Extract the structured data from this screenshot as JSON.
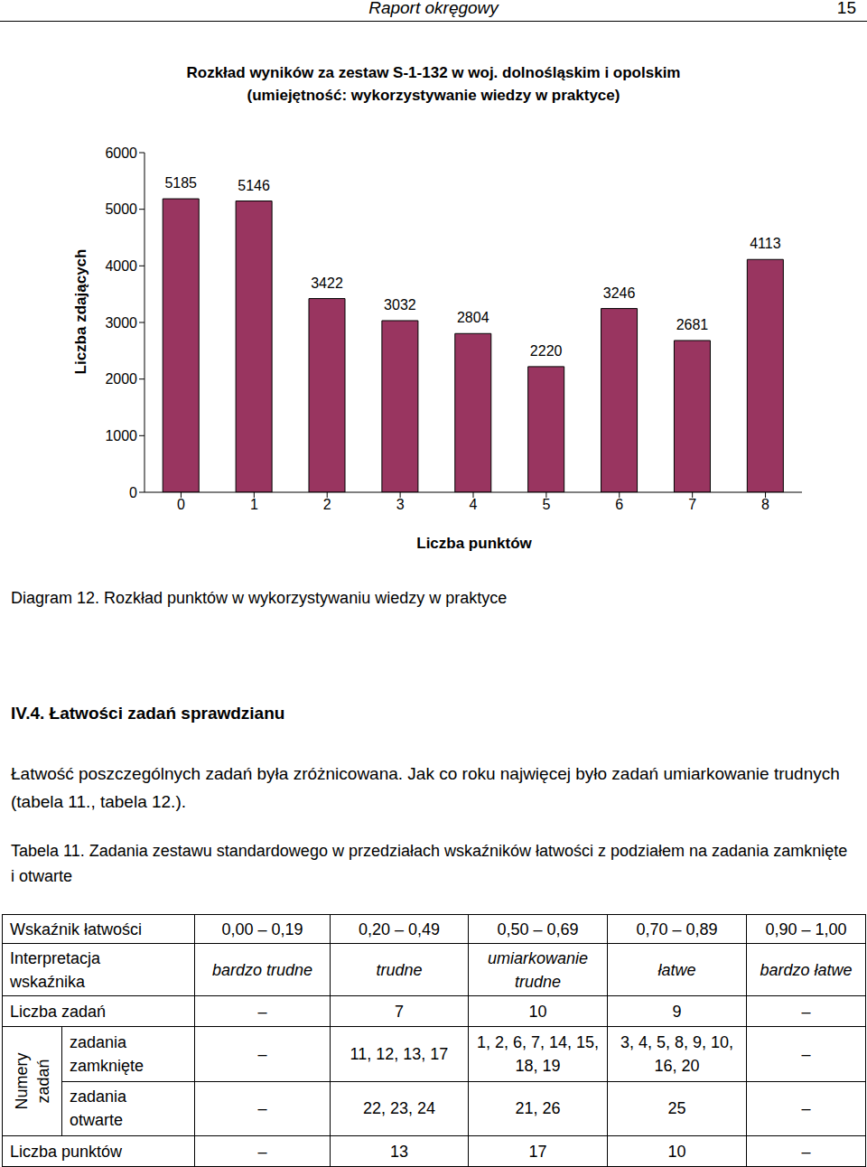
{
  "header": {
    "title": "Raport okręgowy",
    "page": "15"
  },
  "chart_data": {
    "type": "bar",
    "title": "Rozkład wyników za zestaw S-1-132 w woj. dolnośląskim i opolskim",
    "subtitle": "(umiejętność: wykorzystywanie wiedzy w praktyce)",
    "x_label": "Liczba punktów",
    "y_label": "Liczba zdających",
    "categories": [
      "0",
      "1",
      "2",
      "3",
      "4",
      "5",
      "6",
      "7",
      "8"
    ],
    "values": [
      5185,
      5146,
      3422,
      3032,
      2804,
      2220,
      3246,
      2681,
      4113
    ],
    "color": "#993560",
    "ylim": [
      0,
      6000
    ],
    "yticks": [
      0,
      1000,
      2000,
      3000,
      4000,
      5000,
      6000
    ],
    "grid": false,
    "data_labels": true
  },
  "caption": "Diagram 12. Rozkład punktów w wykorzystywaniu wiedzy w praktyce",
  "section_title": "IV.4. Łatwości zadań sprawdzianu",
  "paragraph": "Łatwość poszczególnych zadań była zróżnicowana. Jak co roku najwięcej było zadań umiarkowanie trudnych (tabela 11., tabela 12.).",
  "table_caption": "Tabela 11. Zadania zestawu standardowego w przedziałach wskaźników łatwości z podziałem na zadania zamknięte i otwarte",
  "table": {
    "head": {
      "label": "Wskaźnik łatwości",
      "cells": [
        "0,00 – 0,19",
        "0,20 – 0,49",
        "0,50 – 0,69",
        "0,70 – 0,89",
        "0,90 – 1,00"
      ]
    },
    "interpretation": {
      "label": "Interpretacja wskaźnika",
      "cells": [
        "bardzo trudne",
        "trudne",
        "umiarkowanie trudne",
        "łatwe",
        "bardzo łatwe"
      ]
    },
    "task_count": {
      "label": "Liczba zadań",
      "cells": [
        "–",
        "7",
        "10",
        "9",
        "–"
      ]
    },
    "task_numbers": {
      "label": "Numery zadań",
      "rows": [
        {
          "label": "zadania zamknięte",
          "cells": [
            "–",
            "11, 12, 13, 17",
            "1, 2, 6, 7, 14, 15, 18, 19",
            "3, 4, 5, 8, 9, 10, 16, 20",
            "–"
          ]
        },
        {
          "label": "zadania otwarte",
          "cells": [
            "–",
            "22, 23, 24",
            "21, 26",
            "25",
            "–"
          ]
        }
      ]
    },
    "points": {
      "label": "Liczba punktów",
      "cells": [
        "–",
        "13",
        "17",
        "10",
        "–"
      ]
    }
  }
}
